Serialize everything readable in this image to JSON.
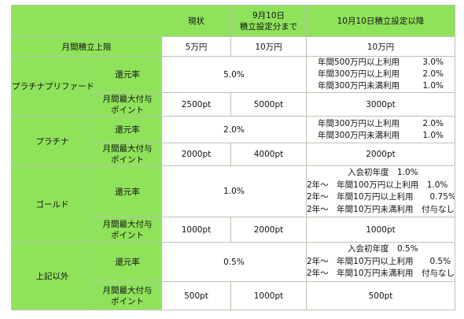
{
  "header": {
    "col1": "現状",
    "col2": [
      "9月10日",
      "積立設定分まで"
    ],
    "col3": "10月10日積立設定以降"
  },
  "monthly_limit": {
    "label": "月間積立上限",
    "current": "5万円",
    "sep10": "10万円",
    "oct10": "10万円"
  },
  "tiers": [
    {
      "name": "プラチナプリファード",
      "rate_label": "還元率",
      "rate_current_sep": "5.0%",
      "rate_oct": [
        {
          "text": "年間500万円以上利用",
          "value": "3.0%"
        },
        {
          "text": "年間300万円以上利用",
          "value": "2.0%"
        },
        {
          "text": "年間300万円未満利用",
          "value": "1.0%"
        }
      ],
      "max_label": [
        "月間最大付与",
        "ポイント"
      ],
      "max_current": "2500pt",
      "max_sep": "5000pt",
      "max_oct": "3000pt"
    },
    {
      "name": "プラチナ",
      "rate_label": "還元率",
      "rate_current_sep": "2.0%",
      "rate_oct": [
        {
          "text": "年間300万円以上利用",
          "value": "2.0%"
        },
        {
          "text": "年間300万円未満利用",
          "value": "1.0%"
        }
      ],
      "max_label": [
        "月間最大付与",
        "ポイント"
      ],
      "max_current": "2000pt",
      "max_sep": "4000pt",
      "max_oct": "2000pt"
    },
    {
      "name": "ゴールド",
      "rate_label": "還元率",
      "rate_current_sep": "1.0%",
      "rate_oct": [
        "入会初年度　1.0%",
        "2年～　年間100万円以上利用　1.0%",
        "2年～　年間10万円以上利用　　0.75%",
        "2年～　年間10万円未満利用　付与なし"
      ],
      "max_label": [
        "月間最大付与",
        "ポイント"
      ],
      "max_current": "1000pt",
      "max_sep": "2000pt",
      "max_oct": "1000pt"
    },
    {
      "name": "上記以外",
      "rate_label": "還元率",
      "rate_current_sep": "0.5%",
      "rate_oct": [
        "入会初年度　0.5%",
        "2年～　年間10万円以上利用　　0.5%",
        "2年～　年間10万円未満利用　付与なし"
      ],
      "max_label": [
        "月間最大付与",
        "ポイント"
      ],
      "max_current": "500pt",
      "max_sep": "1000pt",
      "max_oct": "500pt"
    }
  ],
  "colors": {
    "header_green": "#8fe35a",
    "border": "#b9c4b0"
  }
}
